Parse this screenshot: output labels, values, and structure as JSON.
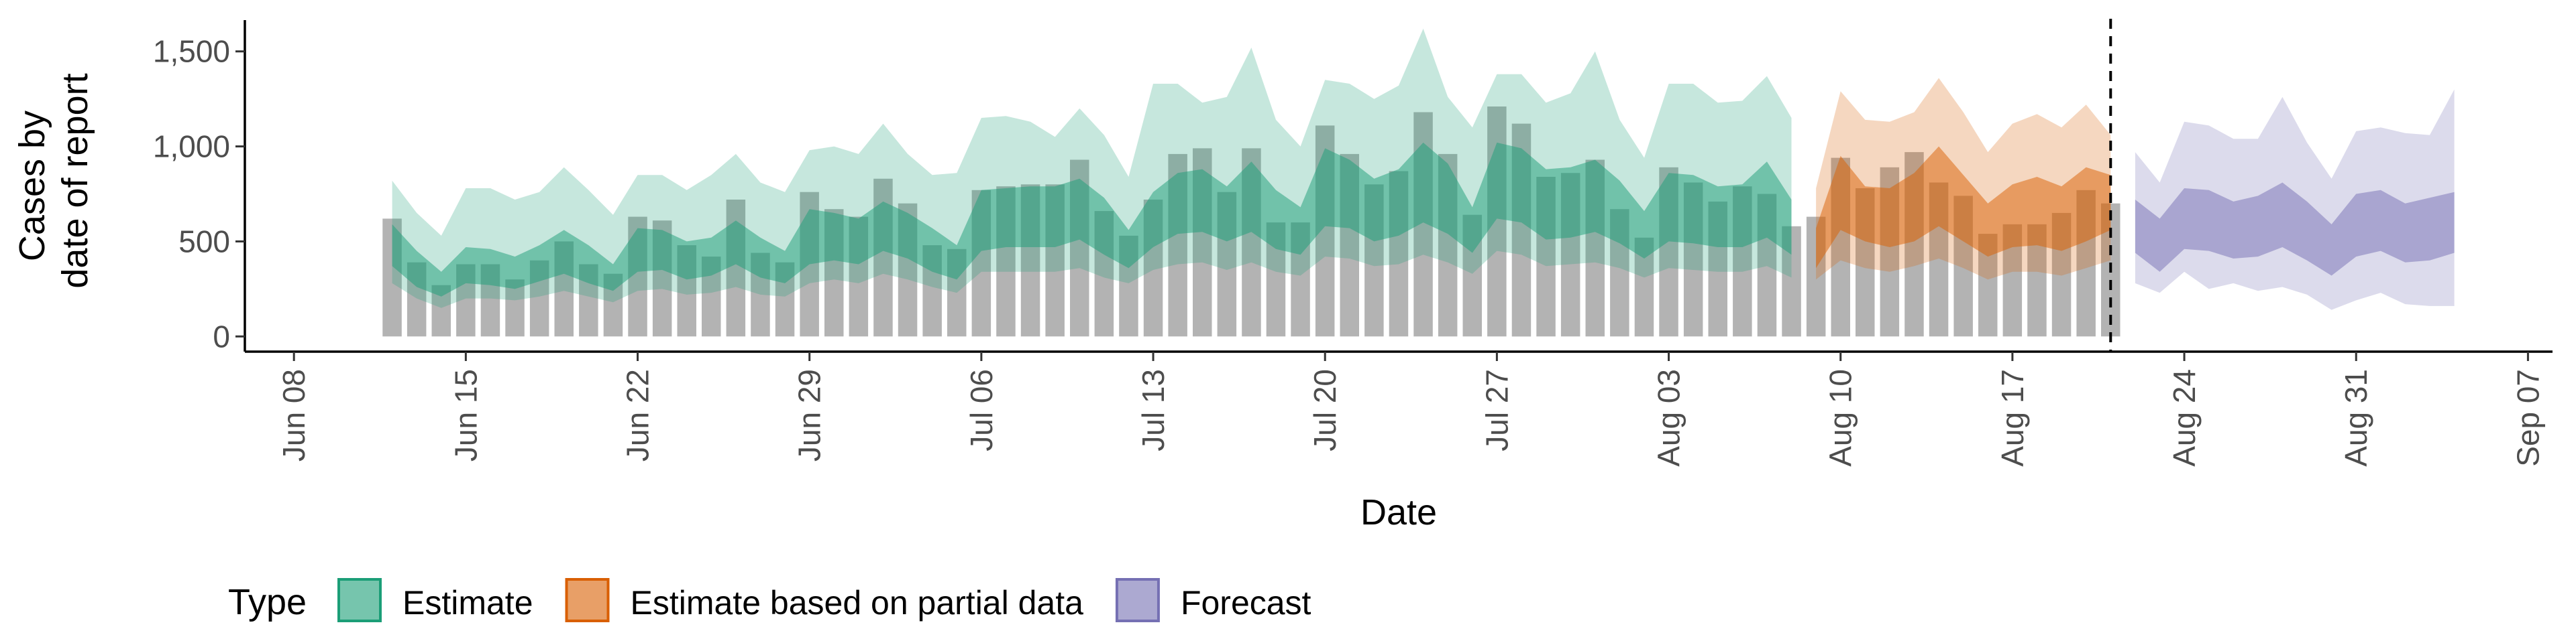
{
  "chart_data": {
    "type": "bar",
    "title": "",
    "xlabel": "Date",
    "ylabel_lines": [
      "Cases by",
      "date of report"
    ],
    "xlim": [
      "2020-06-06",
      "2020-09-08"
    ],
    "ylim": [
      -80,
      1700
    ],
    "yticks": [
      0,
      500,
      1000,
      1500
    ],
    "ytick_labels": [
      "0",
      "500",
      "1,000",
      "1,500"
    ],
    "xticks": [
      "2020-06-08",
      "2020-06-15",
      "2020-06-22",
      "2020-06-29",
      "2020-07-06",
      "2020-07-13",
      "2020-07-20",
      "2020-07-27",
      "2020-08-03",
      "2020-08-10",
      "2020-08-17",
      "2020-08-24",
      "2020-08-31",
      "2020-09-07"
    ],
    "xtick_labels": [
      "Jun 08",
      "Jun 15",
      "Jun 22",
      "Jun 29",
      "Jul 06",
      "Jul 13",
      "Jul 20",
      "Jul 27",
      "Aug 03",
      "Aug 10",
      "Aug 17",
      "Aug 24",
      "Aug 31",
      "Sep 07"
    ],
    "grid": false,
    "legend_position": "bottom",
    "legend_title": "Type",
    "vline_date": "2020-08-21",
    "reported_cases": {
      "start": "2020-06-12",
      "values": [
        620,
        390,
        270,
        380,
        380,
        300,
        400,
        500,
        380,
        330,
        630,
        610,
        480,
        420,
        720,
        440,
        390,
        760,
        670,
        630,
        830,
        700,
        480,
        460,
        770,
        790,
        800,
        800,
        930,
        660,
        530,
        720,
        960,
        990,
        760,
        990,
        600,
        600,
        1110,
        960,
        800,
        870,
        1180,
        960,
        640,
        1210,
        1120,
        840,
        860,
        930,
        670,
        520,
        890,
        810,
        710,
        790,
        750,
        580,
        630,
        940,
        780,
        890,
        970,
        810,
        740,
        540,
        590,
        590,
        650,
        770,
        700
      ]
    },
    "series": [
      {
        "name": "Estimate",
        "color": "#1b9e77",
        "start": "2020-06-12",
        "median": [
          470,
          340,
          270,
          380,
          360,
          330,
          380,
          430,
          360,
          300,
          420,
          450,
          380,
          410,
          480,
          400,
          360,
          460,
          490,
          460,
          550,
          500,
          420,
          360,
          560,
          590,
          590,
          590,
          640,
          540,
          440,
          560,
          650,
          670,
          600,
          660,
          560,
          520,
          700,
          690,
          600,
          640,
          730,
          650,
          520,
          750,
          720,
          620,
          640,
          670,
          590,
          500,
          620,
          610,
          570,
          580,
          650,
          530
        ],
        "inner": {
          "lower": [
            370,
            260,
            210,
            280,
            270,
            250,
            290,
            330,
            280,
            240,
            340,
            350,
            300,
            320,
            380,
            310,
            280,
            380,
            400,
            380,
            450,
            410,
            340,
            300,
            450,
            470,
            470,
            470,
            510,
            430,
            360,
            470,
            540,
            550,
            500,
            550,
            460,
            430,
            580,
            570,
            500,
            530,
            600,
            540,
            440,
            620,
            600,
            510,
            520,
            550,
            490,
            410,
            500,
            490,
            470,
            470,
            520,
            430
          ],
          "upper": [
            590,
            450,
            340,
            470,
            460,
            420,
            480,
            560,
            480,
            380,
            570,
            560,
            500,
            520,
            610,
            520,
            450,
            670,
            650,
            620,
            710,
            650,
            570,
            480,
            770,
            780,
            790,
            790,
            830,
            730,
            560,
            760,
            860,
            880,
            790,
            920,
            770,
            680,
            990,
            930,
            830,
            880,
            1020,
            910,
            680,
            1020,
            990,
            880,
            890,
            930,
            820,
            660,
            860,
            850,
            790,
            800,
            920,
            720
          ]
        },
        "outer": {
          "lower": [
            280,
            200,
            150,
            200,
            200,
            190,
            210,
            240,
            210,
            180,
            240,
            250,
            220,
            230,
            260,
            220,
            210,
            280,
            300,
            280,
            330,
            300,
            260,
            230,
            340,
            340,
            340,
            340,
            360,
            310,
            280,
            350,
            380,
            390,
            350,
            390,
            340,
            320,
            420,
            410,
            370,
            380,
            430,
            390,
            330,
            450,
            430,
            370,
            380,
            390,
            360,
            310,
            360,
            350,
            340,
            340,
            370,
            310
          ],
          "upper": [
            820,
            650,
            530,
            780,
            780,
            720,
            760,
            890,
            770,
            640,
            850,
            850,
            770,
            850,
            960,
            810,
            760,
            980,
            1000,
            960,
            1120,
            960,
            850,
            860,
            1150,
            1160,
            1130,
            1050,
            1200,
            1060,
            840,
            1330,
            1330,
            1230,
            1260,
            1520,
            1140,
            1000,
            1350,
            1330,
            1250,
            1320,
            1620,
            1260,
            1100,
            1380,
            1380,
            1230,
            1280,
            1500,
            1140,
            940,
            1330,
            1330,
            1230,
            1240,
            1370,
            1150
          ]
        }
      },
      {
        "name": "Estimate based on partial data",
        "color": "#d95f02",
        "start": "2020-08-09",
        "median": [
          450,
          740,
          640,
          620,
          680,
          800,
          680,
          560,
          640,
          660,
          620,
          700,
          800
        ],
        "inner": {
          "lower": [
            360,
            560,
            500,
            470,
            500,
            580,
            500,
            420,
            470,
            480,
            450,
            500,
            560
          ],
          "upper": [
            570,
            950,
            790,
            780,
            860,
            1000,
            850,
            700,
            800,
            840,
            790,
            890,
            850
          ]
        },
        "outer": {
          "lower": [
            300,
            400,
            360,
            340,
            370,
            410,
            360,
            300,
            340,
            340,
            320,
            360,
            400
          ],
          "upper": [
            780,
            1290,
            1140,
            1130,
            1180,
            1360,
            1180,
            970,
            1120,
            1170,
            1100,
            1220,
            1060
          ]
        }
      },
      {
        "name": "Forecast",
        "color": "#7570b3",
        "start": "2020-08-22",
        "median": [
          560,
          470,
          600,
          600,
          560,
          580,
          630,
          540,
          440,
          580,
          600,
          540,
          560,
          620
        ],
        "inner": {
          "lower": [
            440,
            340,
            460,
            450,
            410,
            420,
            470,
            400,
            320,
            420,
            450,
            390,
            400,
            440
          ],
          "upper": [
            720,
            620,
            780,
            770,
            710,
            740,
            810,
            710,
            590,
            750,
            770,
            700,
            730,
            760
          ]
        },
        "outer": {
          "lower": [
            280,
            230,
            340,
            250,
            280,
            240,
            260,
            220,
            140,
            190,
            230,
            170,
            160,
            160
          ],
          "upper": [
            970,
            810,
            1130,
            1110,
            1040,
            1040,
            1260,
            1020,
            830,
            1080,
            1100,
            1070,
            1060,
            1300
          ]
        }
      }
    ]
  }
}
